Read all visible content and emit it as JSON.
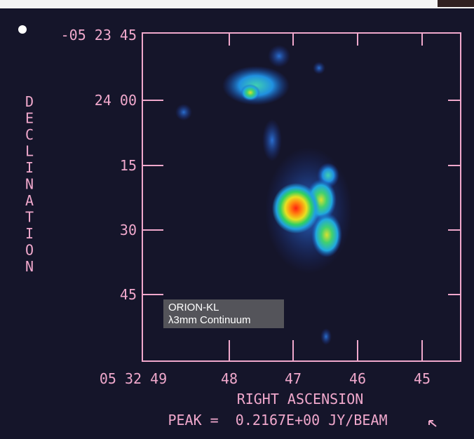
{
  "map": {
    "object": "ORION-KL",
    "band": "λ3mm Continuum",
    "y_axis": {
      "title": "DECLINATION",
      "ticks": [
        "-05 23 45",
        "24 00",
        "15",
        "30",
        "45"
      ]
    },
    "x_axis": {
      "title": "RIGHT ASCENSION",
      "ticks": [
        "05 32 49",
        "48",
        "47",
        "46",
        "45"
      ]
    },
    "peak": "PEAK =  0.2167E+00 JY/BEAM"
  }
}
